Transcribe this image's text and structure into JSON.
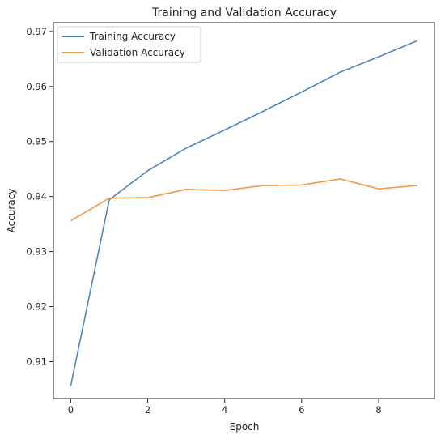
{
  "chart_data": {
    "type": "line",
    "title": "Training and Validation Accuracy",
    "xlabel": "Epoch",
    "ylabel": "Accuracy",
    "x": [
      0,
      1,
      2,
      3,
      4,
      5,
      6,
      7,
      8,
      9
    ],
    "xlim": [
      -0.45,
      9.45
    ],
    "ylim": [
      0.9033,
      0.9716
    ],
    "xticks": [
      0,
      2,
      4,
      6,
      8
    ],
    "yticks": [
      0.91,
      0.92,
      0.93,
      0.94,
      0.95,
      0.96,
      0.97
    ],
    "xtick_labels": [
      "0",
      "2",
      "4",
      "6",
      "8"
    ],
    "ytick_labels": [
      "0.91",
      "0.92",
      "0.93",
      "0.94",
      "0.95",
      "0.96",
      "0.97"
    ],
    "grid": false,
    "legend_position": "top-left",
    "series": [
      {
        "name": "Training Accuracy",
        "color": "#4f86bd",
        "values": [
          0.9056,
          0.9394,
          0.9447,
          0.9488,
          0.9521,
          0.9555,
          0.959,
          0.9626,
          0.9654,
          0.9683
        ]
      },
      {
        "name": "Validation Accuracy",
        "color": "#f39a43",
        "values": [
          0.9356,
          0.9397,
          0.9398,
          0.9413,
          0.9411,
          0.942,
          0.9421,
          0.9432,
          0.9414,
          0.942
        ]
      }
    ]
  }
}
